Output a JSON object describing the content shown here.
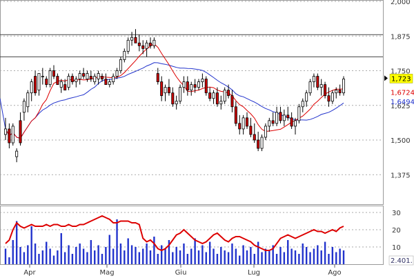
{
  "chart_data": [
    {
      "type": "candlestick",
      "title": "",
      "x_labels": [
        "Apr",
        "Mag",
        "Giu",
        "Lug",
        "Ago"
      ],
      "y_ticks": [
        "2,000",
        "1,875",
        "1,750",
        "1,625",
        "1,500",
        "1,375"
      ],
      "y_tick_values": [
        2.0,
        1.875,
        1.75,
        1.625,
        1.5,
        1.375
      ],
      "ylim": [
        1.26,
        2.0
      ],
      "horizontal_lines": [
        1.88,
        1.8
      ],
      "last_price_label": "1,723",
      "ma_labels": [
        "1,6724",
        "1,6494"
      ],
      "colors": {
        "bull_candle": "#ffffff",
        "bear_candle": "#cc0000",
        "wick": "#000000",
        "ma_fast": "#dd0000",
        "ma_slow": "#2233cc",
        "price_label_bg": "#ffff00",
        "grid": "#aaaaaa"
      },
      "candles": [
        [
          1.52,
          1.58,
          1.5,
          1.54
        ],
        [
          1.54,
          1.56,
          1.47,
          1.49
        ],
        [
          1.49,
          1.56,
          1.48,
          1.55
        ],
        [
          1.44,
          1.47,
          1.42,
          1.46
        ],
        [
          1.57,
          1.6,
          1.48,
          1.49
        ],
        [
          1.6,
          1.65,
          1.57,
          1.64
        ],
        [
          1.62,
          1.68,
          1.6,
          1.67
        ],
        [
          1.67,
          1.72,
          1.64,
          1.71
        ],
        [
          1.73,
          1.75,
          1.66,
          1.67
        ],
        [
          1.68,
          1.74,
          1.66,
          1.74
        ],
        [
          1.73,
          1.76,
          1.7,
          1.73
        ],
        [
          1.72,
          1.73,
          1.69,
          1.7
        ],
        [
          1.7,
          1.76,
          1.69,
          1.75
        ],
        [
          1.75,
          1.77,
          1.72,
          1.73
        ],
        [
          1.73,
          1.74,
          1.7,
          1.7
        ],
        [
          1.69,
          1.72,
          1.67,
          1.71
        ],
        [
          1.7,
          1.72,
          1.68,
          1.68
        ],
        [
          1.69,
          1.74,
          1.68,
          1.73
        ],
        [
          1.73,
          1.74,
          1.7,
          1.71
        ],
        [
          1.71,
          1.73,
          1.69,
          1.72
        ],
        [
          1.72,
          1.75,
          1.7,
          1.74
        ],
        [
          1.74,
          1.76,
          1.72,
          1.73
        ],
        [
          1.72,
          1.75,
          1.71,
          1.74
        ],
        [
          1.73,
          1.75,
          1.71,
          1.72
        ],
        [
          1.71,
          1.74,
          1.7,
          1.73
        ],
        [
          1.72,
          1.75,
          1.7,
          1.74
        ],
        [
          1.73,
          1.74,
          1.71,
          1.72
        ],
        [
          1.72,
          1.74,
          1.7,
          1.7
        ],
        [
          1.7,
          1.72,
          1.69,
          1.71
        ],
        [
          1.71,
          1.74,
          1.7,
          1.73
        ],
        [
          1.73,
          1.76,
          1.72,
          1.75
        ],
        [
          1.75,
          1.8,
          1.74,
          1.79
        ],
        [
          1.79,
          1.83,
          1.78,
          1.82
        ],
        [
          1.82,
          1.87,
          1.81,
          1.86
        ],
        [
          1.86,
          1.89,
          1.84,
          1.87
        ],
        [
          1.87,
          1.9,
          1.85,
          1.85
        ],
        [
          1.85,
          1.88,
          1.82,
          1.84
        ],
        [
          1.84,
          1.86,
          1.81,
          1.83
        ],
        [
          1.83,
          1.86,
          1.8,
          1.85
        ],
        [
          1.85,
          1.87,
          1.83,
          1.84
        ],
        [
          1.84,
          1.87,
          1.83,
          1.86
        ],
        [
          1.74,
          1.76,
          1.7,
          1.71
        ],
        [
          1.71,
          1.73,
          1.64,
          1.66
        ],
        [
          1.67,
          1.7,
          1.64,
          1.69
        ],
        [
          1.69,
          1.72,
          1.66,
          1.67
        ],
        [
          1.67,
          1.69,
          1.62,
          1.63
        ],
        [
          1.63,
          1.66,
          1.61,
          1.64
        ],
        [
          1.64,
          1.7,
          1.63,
          1.69
        ],
        [
          1.69,
          1.73,
          1.67,
          1.71
        ],
        [
          1.71,
          1.73,
          1.66,
          1.68
        ],
        [
          1.68,
          1.71,
          1.66,
          1.7
        ],
        [
          1.7,
          1.72,
          1.67,
          1.69
        ],
        [
          1.69,
          1.72,
          1.68,
          1.71
        ],
        [
          1.71,
          1.74,
          1.69,
          1.72
        ],
        [
          1.72,
          1.73,
          1.66,
          1.67
        ],
        [
          1.67,
          1.69,
          1.64,
          1.65
        ],
        [
          1.65,
          1.68,
          1.63,
          1.67
        ],
        [
          1.67,
          1.69,
          1.62,
          1.63
        ],
        [
          1.63,
          1.66,
          1.61,
          1.64
        ],
        [
          1.64,
          1.69,
          1.63,
          1.68
        ],
        [
          1.68,
          1.7,
          1.65,
          1.66
        ],
        [
          1.66,
          1.68,
          1.6,
          1.62
        ],
        [
          1.62,
          1.64,
          1.55,
          1.56
        ],
        [
          1.56,
          1.59,
          1.52,
          1.54
        ],
        [
          1.54,
          1.59,
          1.52,
          1.58
        ],
        [
          1.58,
          1.6,
          1.54,
          1.55
        ],
        [
          1.55,
          1.58,
          1.51,
          1.52
        ],
        [
          1.52,
          1.56,
          1.49,
          1.5
        ],
        [
          1.5,
          1.53,
          1.46,
          1.47
        ],
        [
          1.47,
          1.52,
          1.46,
          1.51
        ],
        [
          1.51,
          1.56,
          1.5,
          1.55
        ],
        [
          1.55,
          1.58,
          1.53,
          1.57
        ],
        [
          1.57,
          1.6,
          1.55,
          1.56
        ],
        [
          1.56,
          1.62,
          1.55,
          1.6
        ],
        [
          1.6,
          1.62,
          1.56,
          1.57
        ],
        [
          1.57,
          1.61,
          1.55,
          1.59
        ],
        [
          1.59,
          1.62,
          1.57,
          1.58
        ],
        [
          1.58,
          1.6,
          1.54,
          1.55
        ],
        [
          1.55,
          1.58,
          1.52,
          1.57
        ],
        [
          1.57,
          1.63,
          1.56,
          1.62
        ],
        [
          1.62,
          1.65,
          1.6,
          1.64
        ],
        [
          1.64,
          1.68,
          1.62,
          1.67
        ],
        [
          1.67,
          1.72,
          1.66,
          1.71
        ],
        [
          1.71,
          1.74,
          1.69,
          1.73
        ],
        [
          1.73,
          1.74,
          1.68,
          1.69
        ],
        [
          1.69,
          1.72,
          1.66,
          1.7
        ],
        [
          1.7,
          1.71,
          1.65,
          1.66
        ],
        [
          1.66,
          1.69,
          1.62,
          1.64
        ],
        [
          1.64,
          1.68,
          1.63,
          1.67
        ],
        [
          1.67,
          1.69,
          1.65,
          1.68
        ],
        [
          1.68,
          1.7,
          1.66,
          1.67
        ],
        [
          1.67,
          1.73,
          1.66,
          1.72
        ]
      ]
    },
    {
      "type": "bar+line",
      "title": "",
      "y_ticks": [
        "30",
        "20",
        "10"
      ],
      "y_tick_values": [
        30,
        20,
        10
      ],
      "ylim": [
        0,
        34
      ],
      "last_volume_label": "2.401.",
      "volumes": [
        9,
        4,
        14,
        25,
        10,
        7,
        11,
        22,
        12,
        6,
        8,
        13,
        9,
        5,
        8,
        18,
        7,
        11,
        6,
        10,
        12,
        9,
        7,
        14,
        8,
        11,
        6,
        10,
        17,
        9,
        26,
        12,
        8,
        15,
        11,
        10,
        7,
        9,
        12,
        8,
        16,
        6,
        11,
        9,
        14,
        7,
        10,
        8,
        12,
        6,
        9,
        15,
        8,
        11,
        7,
        13,
        9,
        6,
        10,
        8,
        7,
        12,
        9,
        5,
        11,
        8,
        10,
        6,
        13,
        7,
        9,
        8,
        11,
        6,
        10,
        7,
        14,
        9,
        8,
        6,
        12,
        10,
        7,
        9,
        11,
        8,
        13,
        6,
        10,
        7,
        9,
        8
      ],
      "indicator": [
        12,
        14,
        20,
        24,
        22,
        21,
        22,
        23,
        22,
        22,
        22,
        23,
        22,
        23,
        23,
        22,
        22,
        23,
        22,
        22,
        23,
        23,
        24,
        25,
        26,
        27,
        28,
        27,
        26,
        24,
        24,
        25,
        25,
        25,
        24,
        24,
        23,
        15,
        13,
        14,
        12,
        9,
        8,
        9,
        11,
        14,
        17,
        18,
        20,
        18,
        16,
        14,
        13,
        12,
        13,
        15,
        17,
        18,
        16,
        14,
        13,
        15,
        16,
        16,
        15,
        14,
        13,
        11,
        10,
        9,
        8,
        8,
        9,
        12,
        15,
        16,
        17,
        16,
        15,
        16,
        17,
        18,
        19,
        20,
        19,
        19,
        18,
        19,
        20,
        19,
        21,
        22
      ]
    }
  ]
}
